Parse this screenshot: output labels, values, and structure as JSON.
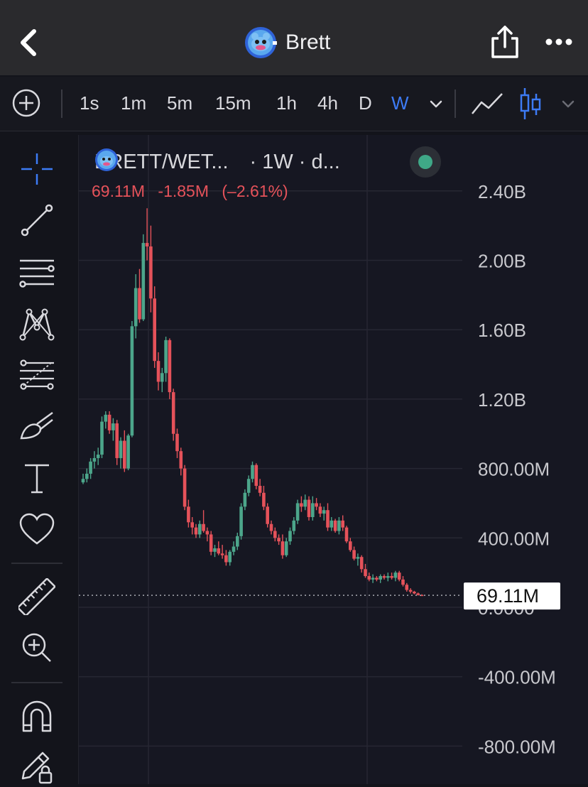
{
  "nav": {
    "title": "Brett",
    "back_icon": "chevron-left-icon",
    "share_icon": "share-icon",
    "more_icon": "more-dots-icon"
  },
  "toolbar": {
    "intervals": [
      "1s",
      "1m",
      "5m",
      "15m",
      "1h",
      "4h",
      "D",
      "W"
    ],
    "active_interval": "W"
  },
  "legend": {
    "symbol": "BRETT/WET...",
    "interval_text": "· 1W · d...",
    "last_value": "69.11M",
    "change": "-1.85M",
    "change_pct": "(–2.61%)"
  },
  "price_scale": {
    "labels": [
      "2.40B",
      "2.00B",
      "1.60B",
      "1.20B",
      "800.00M",
      "400.00M",
      "0.0000",
      "-400.00M",
      "-800.00M"
    ],
    "current_label": "69.11M"
  },
  "colors": {
    "up": "#4ca68b",
    "down": "#e5525a",
    "accent": "#3d7bf5",
    "background": "#161722"
  },
  "chart_data": {
    "type": "candlestick",
    "interval": "1W",
    "y_range": [
      -1000000000,
      2600000000
    ],
    "last_value": 69110000,
    "candles": [
      [
        720,
        770,
        710,
        740
      ],
      [
        740,
        800,
        720,
        770
      ],
      [
        770,
        860,
        740,
        840
      ],
      [
        840,
        900,
        800,
        860
      ],
      [
        860,
        920,
        820,
        880
      ],
      [
        880,
        1100,
        860,
        1070
      ],
      [
        1070,
        1130,
        1030,
        1110
      ],
      [
        1110,
        1130,
        1000,
        1020
      ],
      [
        1020,
        1090,
        960,
        1060
      ],
      [
        1060,
        1080,
        820,
        860
      ],
      [
        860,
        980,
        800,
        960
      ],
      [
        960,
        1020,
        780,
        800
      ],
      [
        800,
        1000,
        790,
        990
      ],
      [
        990,
        1650,
        980,
        1620
      ],
      [
        1620,
        1920,
        1550,
        1840
      ],
      [
        1840,
        1950,
        1640,
        1660
      ],
      [
        1660,
        2150,
        1650,
        2100
      ],
      [
        2100,
        2300,
        2000,
        2080
      ],
      [
        2080,
        2200,
        1700,
        1780
      ],
      [
        1780,
        1850,
        1380,
        1420
      ],
      [
        1420,
        1470,
        1250,
        1300
      ],
      [
        1300,
        1380,
        1240,
        1350
      ],
      [
        1350,
        1560,
        1300,
        1540
      ],
      [
        1540,
        1550,
        1200,
        1240
      ],
      [
        1240,
        1260,
        960,
        1000
      ],
      [
        1000,
        1030,
        860,
        900
      ],
      [
        900,
        920,
        760,
        800
      ],
      [
        800,
        820,
        560,
        580
      ],
      [
        580,
        620,
        460,
        490
      ],
      [
        490,
        520,
        420,
        460
      ],
      [
        460,
        480,
        400,
        420
      ],
      [
        420,
        500,
        400,
        480
      ],
      [
        480,
        560,
        430,
        440
      ],
      [
        440,
        460,
        380,
        420
      ],
      [
        420,
        440,
        300,
        320
      ],
      [
        320,
        360,
        290,
        340
      ],
      [
        340,
        380,
        300,
        310
      ],
      [
        310,
        360,
        280,
        300
      ],
      [
        300,
        330,
        240,
        260
      ],
      [
        260,
        330,
        240,
        320
      ],
      [
        320,
        380,
        300,
        350
      ],
      [
        350,
        430,
        330,
        410
      ],
      [
        410,
        600,
        390,
        580
      ],
      [
        580,
        680,
        560,
        660
      ],
      [
        660,
        760,
        640,
        740
      ],
      [
        740,
        840,
        720,
        820
      ],
      [
        820,
        830,
        680,
        700
      ],
      [
        700,
        740,
        640,
        660
      ],
      [
        660,
        700,
        560,
        580
      ],
      [
        580,
        600,
        460,
        480
      ],
      [
        480,
        500,
        420,
        440
      ],
      [
        440,
        460,
        380,
        400
      ],
      [
        400,
        420,
        360,
        380
      ],
      [
        380,
        420,
        280,
        300
      ],
      [
        300,
        400,
        290,
        380
      ],
      [
        380,
        460,
        360,
        440
      ],
      [
        440,
        520,
        420,
        500
      ],
      [
        500,
        620,
        480,
        600
      ],
      [
        600,
        640,
        550,
        580
      ],
      [
        580,
        650,
        560,
        620
      ],
      [
        620,
        640,
        500,
        520
      ],
      [
        520,
        640,
        500,
        600
      ],
      [
        600,
        630,
        560,
        580
      ],
      [
        580,
        600,
        520,
        540
      ],
      [
        540,
        580,
        500,
        560
      ],
      [
        560,
        600,
        440,
        460
      ],
      [
        460,
        520,
        440,
        500
      ],
      [
        500,
        510,
        430,
        440
      ],
      [
        440,
        520,
        420,
        500
      ],
      [
        500,
        530,
        440,
        460
      ],
      [
        460,
        470,
        370,
        380
      ],
      [
        380,
        400,
        320,
        330
      ],
      [
        330,
        350,
        270,
        280
      ],
      [
        280,
        310,
        240,
        290
      ],
      [
        290,
        300,
        200,
        220
      ],
      [
        220,
        250,
        170,
        180
      ],
      [
        180,
        200,
        150,
        160
      ],
      [
        160,
        190,
        140,
        170
      ],
      [
        170,
        180,
        150,
        160
      ],
      [
        160,
        190,
        140,
        180
      ],
      [
        180,
        190,
        160,
        170
      ],
      [
        170,
        200,
        150,
        180
      ],
      [
        180,
        200,
        160,
        170
      ],
      [
        170,
        210,
        150,
        200
      ],
      [
        200,
        210,
        150,
        160
      ],
      [
        160,
        180,
        120,
        130
      ],
      [
        130,
        140,
        90,
        100
      ],
      [
        100,
        110,
        80,
        90
      ],
      [
        90,
        95,
        75,
        80
      ],
      [
        80,
        85,
        68,
        71
      ],
      [
        71,
        75,
        66,
        69.11
      ]
    ]
  }
}
